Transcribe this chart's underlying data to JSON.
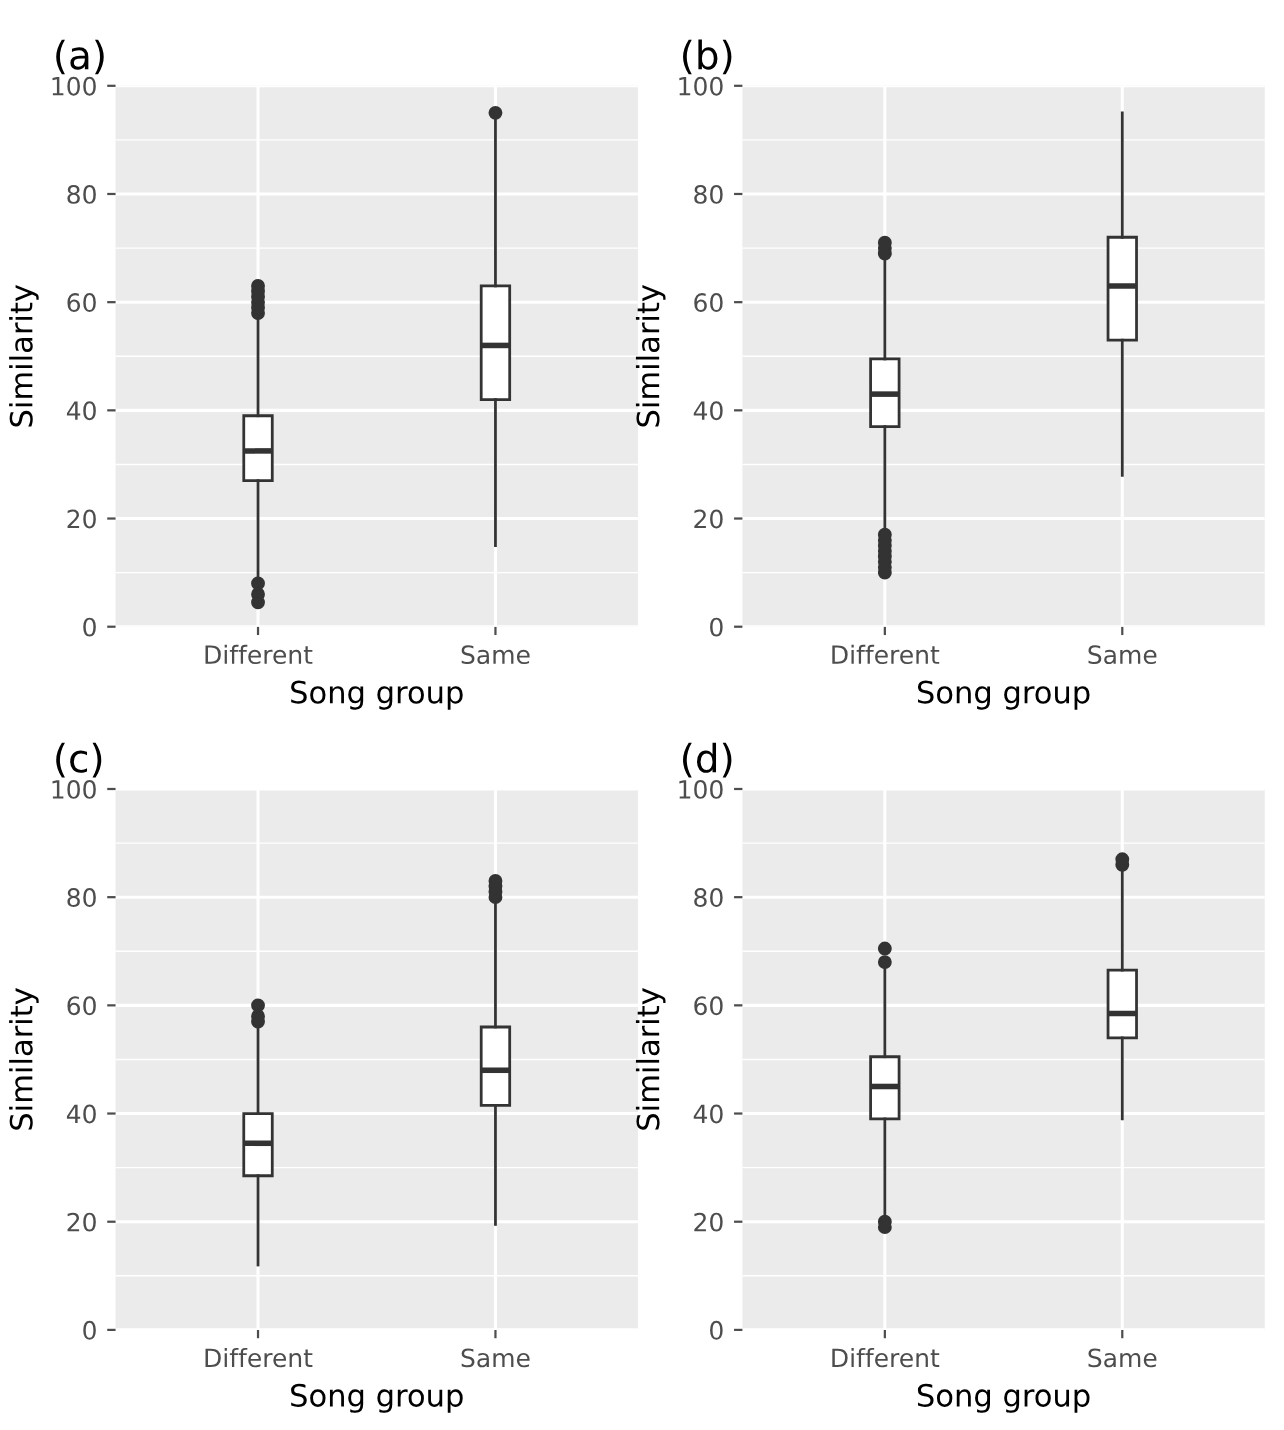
{
  "chart_data": [
    {
      "type": "box",
      "title": "(a)",
      "xlabel": "Song group",
      "ylabel": "Similarity",
      "categories": [
        "Different",
        "Same"
      ],
      "ylim": [
        0,
        100
      ],
      "yticks": [
        0,
        20,
        40,
        60,
        80,
        100
      ],
      "grid": true,
      "boxes": [
        {
          "low": 9,
          "q1": 27,
          "median": 32.5,
          "q3": 39,
          "high": 57,
          "outliers": [
            4.5,
            6,
            8,
            58,
            59,
            60,
            61,
            62,
            63
          ]
        },
        {
          "low": 15,
          "q1": 42,
          "median": 52,
          "q3": 63,
          "high": 94,
          "outliers": [
            95
          ]
        }
      ]
    },
    {
      "type": "box",
      "title": "(b)",
      "xlabel": "Song group",
      "ylabel": "Similarity",
      "categories": [
        "Different",
        "Same"
      ],
      "ylim": [
        0,
        100
      ],
      "yticks": [
        0,
        20,
        40,
        60,
        80,
        100
      ],
      "grid": true,
      "boxes": [
        {
          "low": 18,
          "q1": 37,
          "median": 43,
          "q3": 49.5,
          "high": 68,
          "outliers": [
            10,
            11,
            12,
            13,
            14,
            15,
            16,
            17,
            69,
            70,
            71
          ]
        },
        {
          "low": 28,
          "q1": 53,
          "median": 63,
          "q3": 72,
          "high": 95
        }
      ]
    },
    {
      "type": "box",
      "title": "(c)",
      "xlabel": "Song group",
      "ylabel": "Similarity",
      "categories": [
        "Different",
        "Same"
      ],
      "ylim": [
        0,
        100
      ],
      "yticks": [
        0,
        20,
        40,
        60,
        80,
        100
      ],
      "grid": true,
      "boxes": [
        {
          "low": 12,
          "q1": 28.5,
          "median": 34.5,
          "q3": 40,
          "high": 56,
          "outliers": [
            57,
            58,
            60
          ]
        },
        {
          "low": 19.5,
          "q1": 41.5,
          "median": 48,
          "q3": 56,
          "high": 79,
          "outliers": [
            80,
            81,
            82,
            83
          ]
        }
      ]
    },
    {
      "type": "box",
      "title": "(d)",
      "xlabel": "Song group",
      "ylabel": "Similarity",
      "categories": [
        "Different",
        "Same"
      ],
      "ylim": [
        0,
        100
      ],
      "yticks": [
        0,
        20,
        40,
        60,
        80,
        100
      ],
      "grid": true,
      "boxes": [
        {
          "low": 21,
          "q1": 39,
          "median": 45,
          "q3": 50.5,
          "high": 67,
          "outliers": [
            19,
            20,
            68,
            70.5
          ]
        },
        {
          "low": 39,
          "q1": 54,
          "median": 58.5,
          "q3": 66.5,
          "high": 85,
          "outliers": [
            86,
            87
          ]
        }
      ]
    }
  ]
}
